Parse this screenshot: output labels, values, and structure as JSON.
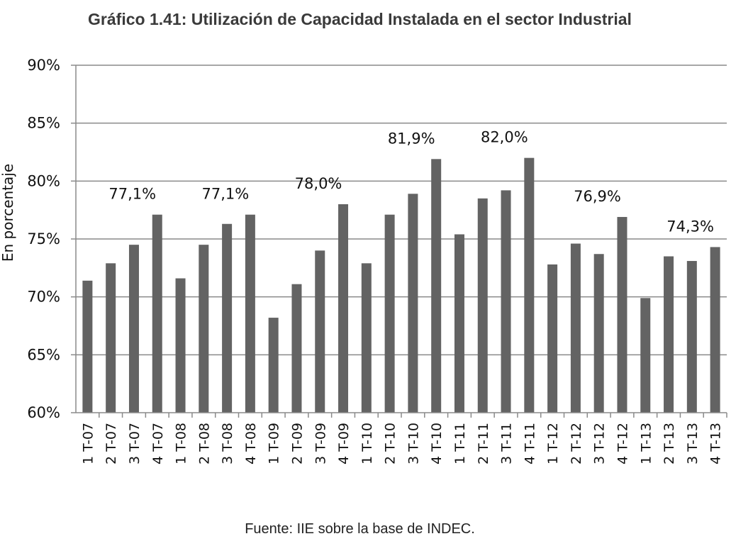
{
  "chart_data": {
    "type": "bar",
    "title": "Gráfico 1.41: Utilización de Capacidad Instalada en el sector Industrial",
    "ylabel": "En porcentaje",
    "xlabel": "",
    "ylim": [
      60,
      90
    ],
    "yticks": [
      60,
      65,
      70,
      75,
      80,
      85,
      90
    ],
    "ytick_labels": [
      "60%",
      "65%",
      "70%",
      "75%",
      "80%",
      "85%",
      "90%"
    ],
    "grid": true,
    "bar_color": "#636363",
    "categories": [
      "1 T-07",
      "2 T-07",
      "3 T-07",
      "4 T-07",
      "1 T-08",
      "2 T-08",
      "3 T-08",
      "4 T-08",
      "1 T-09",
      "2 T-09",
      "3 T-09",
      "4 T-09",
      "1 T-10",
      "2 T-10",
      "3 T-10",
      "4 T-10",
      "1 T-11",
      "2 T-11",
      "3 T-11",
      "4 T-11",
      "1 T-12",
      "2 T-12",
      "3 T-12",
      "4 T-12",
      "1 T-13",
      "2 T-13",
      "3 T-13",
      "4 T-13"
    ],
    "values": [
      71.4,
      72.9,
      74.5,
      77.1,
      71.6,
      74.5,
      76.3,
      77.1,
      68.2,
      71.1,
      74.0,
      78.0,
      72.9,
      77.1,
      78.9,
      81.9,
      75.4,
      78.5,
      79.2,
      82.0,
      72.8,
      74.6,
      73.7,
      76.9,
      69.9,
      73.5,
      73.1,
      74.3
    ],
    "annotations": [
      {
        "index": 3,
        "label": "77,1%"
      },
      {
        "index": 7,
        "label": "77,1%"
      },
      {
        "index": 11,
        "label": "78,0%"
      },
      {
        "index": 15,
        "label": "81,9%"
      },
      {
        "index": 19,
        "label": "82,0%"
      },
      {
        "index": 23,
        "label": "76,9%"
      },
      {
        "index": 27,
        "label": "74,3%"
      }
    ],
    "source": "Fuente: IIE sobre la base de INDEC."
  }
}
